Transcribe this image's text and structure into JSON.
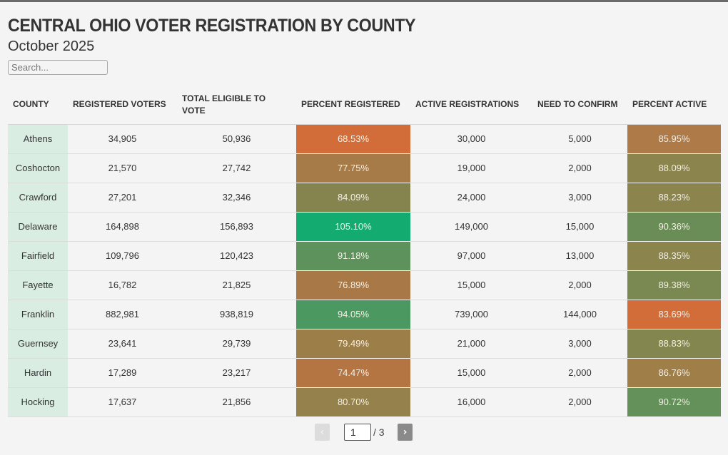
{
  "header": {
    "title": "CENTRAL OHIO VOTER REGISTRATION BY COUNTY",
    "subtitle": "October 2025"
  },
  "search": {
    "placeholder": "Search...",
    "value": ""
  },
  "table": {
    "columns": [
      "COUNTY",
      "REGISTERED VOTERS",
      "TOTAL ELIGIBLE TO VOTE",
      "PERCENT REGISTERED",
      "ACTIVE REGISTRATIONS",
      "NEED TO CONFIRM",
      "PERCENT ACTIVE"
    ],
    "rows": [
      {
        "county": "Athens",
        "registered": "34,905",
        "eligible": "50,936",
        "pct_registered": "68.53%",
        "active": "30,000",
        "confirm": "5,000",
        "pct_active": "85.95%",
        "pct_registered_color": "#d26d39",
        "pct_active_color": "#ad7a48"
      },
      {
        "county": "Coshocton",
        "registered": "21,570",
        "eligible": "27,742",
        "pct_registered": "77.75%",
        "active": "19,000",
        "confirm": "2,000",
        "pct_active": "88.09%",
        "pct_registered_color": "#a67b47",
        "pct_active_color": "#8b844d"
      },
      {
        "county": "Crawford",
        "registered": "27,201",
        "eligible": "32,346",
        "pct_registered": "84.09%",
        "active": "24,000",
        "confirm": "3,000",
        "pct_active": "88.23%",
        "pct_registered_color": "#86844e",
        "pct_active_color": "#8b844d"
      },
      {
        "county": "Delaware",
        "registered": "164,898",
        "eligible": "156,893",
        "pct_registered": "105.10%",
        "active": "149,000",
        "confirm": "15,000",
        "pct_active": "90.36%",
        "pct_registered_color": "#13ab70",
        "pct_active_color": "#6a8c57"
      },
      {
        "county": "Fairfield",
        "registered": "109,796",
        "eligible": "120,423",
        "pct_registered": "91.18%",
        "active": "97,000",
        "confirm": "13,000",
        "pct_active": "88.35%",
        "pct_registered_color": "#5d925c",
        "pct_active_color": "#8b844d"
      },
      {
        "county": "Fayette",
        "registered": "16,782",
        "eligible": "21,825",
        "pct_registered": "76.89%",
        "active": "15,000",
        "confirm": "2,000",
        "pct_active": "89.38%",
        "pct_registered_color": "#a87946",
        "pct_active_color": "#7a8952"
      },
      {
        "county": "Franklin",
        "registered": "882,981",
        "eligible": "938,819",
        "pct_registered": "94.05%",
        "active": "739,000",
        "confirm": "144,000",
        "pct_active": "83.69%",
        "pct_registered_color": "#4b9960",
        "pct_active_color": "#d26d39"
      },
      {
        "county": "Guernsey",
        "registered": "23,641",
        "eligible": "29,739",
        "pct_registered": "79.49%",
        "active": "21,000",
        "confirm": "3,000",
        "pct_active": "88.83%",
        "pct_registered_color": "#9c7e49",
        "pct_active_color": "#83874f"
      },
      {
        "county": "Hardin",
        "registered": "17,289",
        "eligible": "23,217",
        "pct_registered": "74.47%",
        "active": "15,000",
        "confirm": "2,000",
        "pct_active": "86.76%",
        "pct_registered_color": "#b57542",
        "pct_active_color": "#a07e48"
      },
      {
        "county": "Hocking",
        "registered": "17,637",
        "eligible": "21,856",
        "pct_registered": "80.70%",
        "active": "16,000",
        "confirm": "2,000",
        "pct_active": "90.72%",
        "pct_registered_color": "#94814b",
        "pct_active_color": "#649059"
      }
    ]
  },
  "pagination": {
    "prev_icon": "chevron-left",
    "next_icon": "chevron-right",
    "prev_glyph": "‹",
    "next_glyph": "›",
    "current_page": "1",
    "total_label": "/ 3"
  }
}
